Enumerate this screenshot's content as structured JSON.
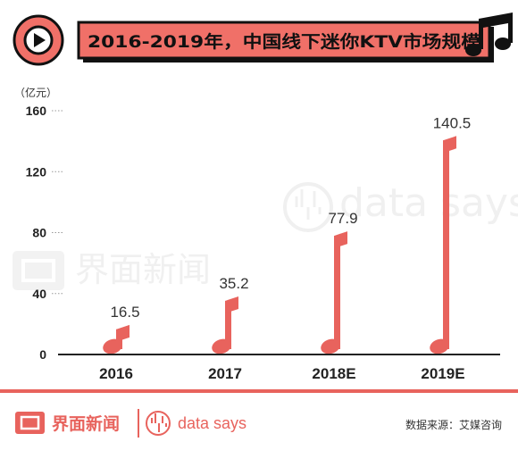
{
  "header": {
    "title": "2016-2019年，中国线下迷你KTV市场规模",
    "play_icon": "play-icon",
    "music_icon": "music-note-icon"
  },
  "chart_data": {
    "type": "bar",
    "categories": [
      "2016",
      "2017",
      "2018E",
      "2019E"
    ],
    "values": [
      16.5,
      35.2,
      77.9,
      140.5
    ],
    "value_labels": [
      "16.5",
      "35.2",
      "77.9",
      "140.5"
    ],
    "ylabel": "（亿元）",
    "ylim": [
      0,
      160
    ],
    "yticks": [
      "0",
      "40",
      "80",
      "120",
      "160"
    ],
    "bar_style": "music-note",
    "grid": false
  },
  "footer": {
    "brand": "界面新闻",
    "data_says": "data says",
    "source": "数据来源：艾媒咨询"
  },
  "watermark": {
    "brand": "界面新闻",
    "data_says": "data says"
  },
  "colors": {
    "accent": "#e8635d",
    "title_bg": "#f07068",
    "border": "#111111",
    "text": "#222222"
  }
}
